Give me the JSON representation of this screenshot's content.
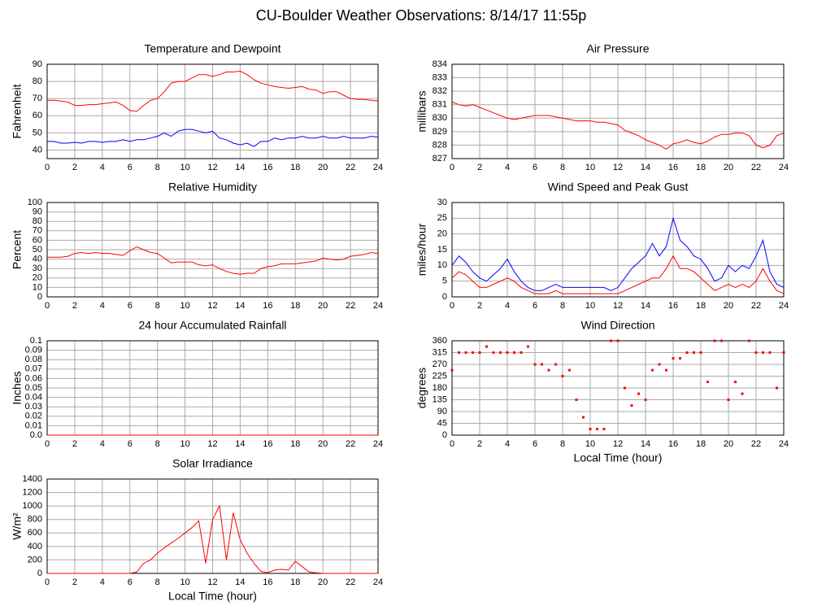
{
  "title": "CU-Boulder Weather Observations: 8/14/17 11:55p",
  "chart_data": [
    {
      "type": "line",
      "title": "Temperature and Dewpoint",
      "ylabel": "Fahrenheit",
      "x": [
        0,
        0.5,
        1,
        1.5,
        2,
        2.5,
        3,
        3.5,
        4,
        4.5,
        5,
        5.5,
        6,
        6.5,
        7,
        7.5,
        8,
        8.5,
        9,
        9.5,
        10,
        10.5,
        11,
        11.5,
        12,
        12.5,
        13,
        13.5,
        14,
        14.5,
        15,
        15.5,
        16,
        16.5,
        17,
        17.5,
        18,
        18.5,
        19,
        19.5,
        20,
        20.5,
        21,
        21.5,
        22,
        22.5,
        23,
        23.5,
        24
      ],
      "xlim": [
        0,
        24
      ],
      "xticks": [
        0,
        2,
        4,
        6,
        8,
        10,
        12,
        14,
        16,
        18,
        20,
        22,
        24
      ],
      "ylim": [
        35,
        90
      ],
      "yticks": [
        40,
        50,
        60,
        70,
        80,
        90
      ],
      "grid": true,
      "series": [
        {
          "color": "#ff0000",
          "values": [
            69,
            69,
            68.5,
            68,
            66,
            66,
            66.5,
            66.5,
            67,
            67.5,
            68,
            66,
            63,
            62.5,
            66,
            69,
            70,
            74,
            79,
            80,
            80,
            82,
            84,
            84,
            83,
            84,
            85.5,
            85.5,
            86,
            84,
            81,
            79,
            78,
            77,
            76.5,
            76,
            76.5,
            77,
            75.5,
            75,
            73,
            74,
            74,
            72,
            70,
            69.5,
            69.5,
            69,
            68.5
          ]
        },
        {
          "color": "#0000ff",
          "values": [
            45,
            45,
            44,
            44,
            44.5,
            44,
            45,
            45,
            44.5,
            45,
            45,
            46,
            45,
            46,
            46,
            47,
            48,
            50,
            48,
            51,
            52,
            52,
            51,
            50,
            51,
            47,
            46,
            44,
            43,
            44,
            42,
            45,
            45,
            47,
            46,
            47,
            47,
            48,
            47,
            47,
            48,
            47,
            47,
            48,
            47,
            47,
            47,
            48,
            47.5
          ]
        }
      ]
    },
    {
      "type": "line",
      "title": "Air Pressure",
      "ylabel": "millibars",
      "x": [
        0,
        0.5,
        1,
        1.5,
        2,
        2.5,
        3,
        3.5,
        4,
        4.5,
        5,
        5.5,
        6,
        6.5,
        7,
        7.5,
        8,
        8.5,
        9,
        9.5,
        10,
        10.5,
        11,
        11.5,
        12,
        12.5,
        13,
        13.5,
        14,
        14.5,
        15,
        15.5,
        16,
        16.5,
        17,
        17.5,
        18,
        18.5,
        19,
        19.5,
        20,
        20.5,
        21,
        21.5,
        22,
        22.5,
        23,
        23.5,
        24
      ],
      "xlim": [
        0,
        24
      ],
      "xticks": [
        0,
        2,
        4,
        6,
        8,
        10,
        12,
        14,
        16,
        18,
        20,
        22,
        24
      ],
      "ylim": [
        827,
        834
      ],
      "yticks": [
        827,
        828,
        829,
        830,
        831,
        832,
        833,
        834
      ],
      "grid": true,
      "series": [
        {
          "color": "#ff0000",
          "values": [
            831.2,
            831,
            830.9,
            831,
            830.8,
            830.6,
            830.4,
            830.2,
            830,
            829.9,
            830,
            830.1,
            830.2,
            830.2,
            830.2,
            830.1,
            830,
            829.9,
            829.8,
            829.8,
            829.8,
            829.7,
            829.7,
            829.6,
            829.5,
            829.1,
            828.9,
            828.7,
            828.4,
            828.2,
            828,
            827.7,
            828.1,
            828.2,
            828.4,
            828.2,
            828.1,
            828.3,
            828.6,
            828.8,
            828.8,
            828.9,
            828.9,
            828.7,
            828,
            827.8,
            828,
            828.7,
            828.9
          ]
        }
      ]
    },
    {
      "type": "line",
      "title": "Relative Humidity",
      "ylabel": "Percent",
      "x": [
        0,
        0.5,
        1,
        1.5,
        2,
        2.5,
        3,
        3.5,
        4,
        4.5,
        5,
        5.5,
        6,
        6.5,
        7,
        7.5,
        8,
        8.5,
        9,
        9.5,
        10,
        10.5,
        11,
        11.5,
        12,
        12.5,
        13,
        13.5,
        14,
        14.5,
        15,
        15.5,
        16,
        16.5,
        17,
        17.5,
        18,
        18.5,
        19,
        19.5,
        20,
        20.5,
        21,
        21.5,
        22,
        22.5,
        23,
        23.5,
        24
      ],
      "xlim": [
        0,
        24
      ],
      "xticks": [
        0,
        2,
        4,
        6,
        8,
        10,
        12,
        14,
        16,
        18,
        20,
        22,
        24
      ],
      "ylim": [
        0,
        100
      ],
      "yticks": [
        0,
        10,
        20,
        30,
        40,
        50,
        60,
        70,
        80,
        90,
        100
      ],
      "grid": true,
      "series": [
        {
          "color": "#ff0000",
          "values": [
            42,
            42,
            42,
            43,
            46,
            47,
            46,
            47,
            46,
            46,
            45,
            44,
            49,
            53,
            50,
            47,
            46,
            41,
            36,
            37,
            37,
            37,
            34,
            33,
            34,
            30,
            27,
            25,
            24,
            25,
            25,
            30,
            32,
            33,
            35,
            35,
            35,
            36,
            37,
            38,
            41,
            40,
            39,
            40,
            43,
            44,
            45,
            47,
            46
          ]
        }
      ]
    },
    {
      "type": "line",
      "title": "Wind Speed and Peak Gust",
      "ylabel": "miles/hour",
      "x": [
        0,
        0.5,
        1,
        1.5,
        2,
        2.5,
        3,
        3.5,
        4,
        4.5,
        5,
        5.5,
        6,
        6.5,
        7,
        7.5,
        8,
        8.5,
        9,
        9.5,
        10,
        10.5,
        11,
        11.5,
        12,
        12.5,
        13,
        13.5,
        14,
        14.5,
        15,
        15.5,
        16,
        16.5,
        17,
        17.5,
        18,
        18.5,
        19,
        19.5,
        20,
        20.5,
        21,
        21.5,
        22,
        22.5,
        23,
        23.5,
        24
      ],
      "xlim": [
        0,
        24
      ],
      "xticks": [
        0,
        2,
        4,
        6,
        8,
        10,
        12,
        14,
        16,
        18,
        20,
        22,
        24
      ],
      "ylim": [
        0,
        30
      ],
      "yticks": [
        0,
        5,
        10,
        15,
        20,
        25,
        30
      ],
      "grid": true,
      "series": [
        {
          "color": "#0000ff",
          "values": [
            10,
            13,
            11,
            8,
            6,
            5,
            7,
            9,
            12,
            8,
            5,
            3,
            2,
            2,
            3,
            4,
            3,
            3,
            3,
            3,
            3,
            3,
            3,
            2,
            3,
            6,
            9,
            11,
            13,
            17,
            13,
            16,
            25,
            18,
            16,
            13,
            12,
            9,
            5,
            6,
            10,
            8,
            10,
            9,
            13,
            18,
            8,
            4,
            3
          ]
        },
        {
          "color": "#ff0000",
          "values": [
            6,
            8,
            7,
            5,
            3,
            3,
            4,
            5,
            6,
            5,
            3,
            2,
            1,
            1,
            1,
            2,
            1,
            1,
            1,
            1,
            1,
            1,
            1,
            1,
            1,
            2,
            3,
            4,
            5,
            6,
            6,
            9,
            13,
            9,
            9,
            8,
            6,
            4,
            2,
            3,
            4,
            3,
            4,
            3,
            5,
            9,
            5,
            2,
            1
          ]
        }
      ]
    },
    {
      "type": "line",
      "title": "24 hour Accumulated Rainfall",
      "ylabel": "Inches",
      "x": [
        0,
        6,
        12,
        18,
        24
      ],
      "xlim": [
        0,
        24
      ],
      "xticks": [
        0,
        2,
        4,
        6,
        8,
        10,
        12,
        14,
        16,
        18,
        20,
        22,
        24
      ],
      "ylim": [
        0,
        0.1
      ],
      "yticks": [
        {
          "value": 0,
          "label": "0.0"
        },
        0.01,
        0.02,
        0.03,
        0.04,
        0.05,
        0.06,
        0.07,
        0.08,
        0.09,
        0.1
      ],
      "grid": true,
      "series": [
        {
          "color": "#ff0000",
          "values": [
            0,
            0,
            0,
            0,
            0
          ]
        }
      ]
    },
    {
      "type": "scatter",
      "title": "Wind Direction",
      "ylabel": "degrees",
      "xlabel": "Local Time (hour)",
      "x": [
        0,
        0.5,
        1,
        1.5,
        2,
        2.5,
        3,
        3.5,
        4,
        4.5,
        5,
        5.5,
        6,
        6.5,
        7,
        7.5,
        8,
        8.5,
        9,
        9.5,
        10,
        10.5,
        11,
        11.5,
        12,
        12.5,
        13,
        13.5,
        14,
        14.5,
        15,
        15.5,
        16,
        16.5,
        17,
        17.5,
        18,
        18.5,
        19,
        19.5,
        20,
        20.5,
        21,
        21.5,
        22,
        22.5,
        23,
        23.5,
        24
      ],
      "xlim": [
        0,
        24
      ],
      "xticks": [
        0,
        2,
        4,
        6,
        8,
        10,
        12,
        14,
        16,
        18,
        20,
        22,
        24
      ],
      "ylim": [
        0,
        360
      ],
      "yticks": [
        0,
        45,
        90,
        135,
        180,
        225,
        270,
        315,
        360
      ],
      "grid": true,
      "series": [
        {
          "color": "#ff0000",
          "values": [
            248,
            315,
            315,
            315,
            315,
            338,
            315,
            315,
            315,
            315,
            315,
            338,
            270,
            270,
            248,
            270,
            225,
            248,
            135,
            68,
            23,
            23,
            23,
            360,
            360,
            180,
            113,
            158,
            135,
            248,
            270,
            248,
            293,
            293,
            315,
            315,
            315,
            203,
            360,
            360,
            135,
            203,
            158,
            360,
            315,
            315,
            315,
            180,
            315
          ]
        }
      ]
    },
    {
      "type": "line",
      "title": "Solar Irradiance",
      "ylabel": "W/m²",
      "xlabel": "Local Time (hour)",
      "x": [
        0,
        0.5,
        1,
        1.5,
        2,
        2.5,
        3,
        3.5,
        4,
        4.5,
        5,
        5.5,
        6,
        6.5,
        7,
        7.5,
        8,
        8.5,
        9,
        9.5,
        10,
        10.5,
        11,
        11.5,
        12,
        12.5,
        13,
        13.5,
        14,
        14.5,
        15,
        15.5,
        16,
        16.5,
        17,
        17.5,
        18,
        18.5,
        19,
        19.5,
        20,
        20.5,
        21,
        21.5,
        22,
        22.5,
        23,
        23.5,
        24
      ],
      "xlim": [
        0,
        24
      ],
      "xticks": [
        0,
        2,
        4,
        6,
        8,
        10,
        12,
        14,
        16,
        18,
        20,
        22,
        24
      ],
      "ylim": [
        0,
        1400
      ],
      "yticks": [
        0,
        200,
        400,
        600,
        800,
        1000,
        1200,
        1400
      ],
      "grid": true,
      "series": [
        {
          "color": "#ff0000",
          "values": [
            0,
            0,
            0,
            0,
            0,
            0,
            0,
            0,
            0,
            0,
            0,
            0,
            0,
            20,
            150,
            200,
            300,
            380,
            450,
            520,
            600,
            680,
            780,
            150,
            800,
            1000,
            200,
            900,
            500,
            300,
            150,
            30,
            10,
            50,
            60,
            50,
            180,
            100,
            20,
            10,
            0,
            0,
            0,
            0,
            0,
            0,
            0,
            0,
            0
          ]
        }
      ]
    }
  ]
}
